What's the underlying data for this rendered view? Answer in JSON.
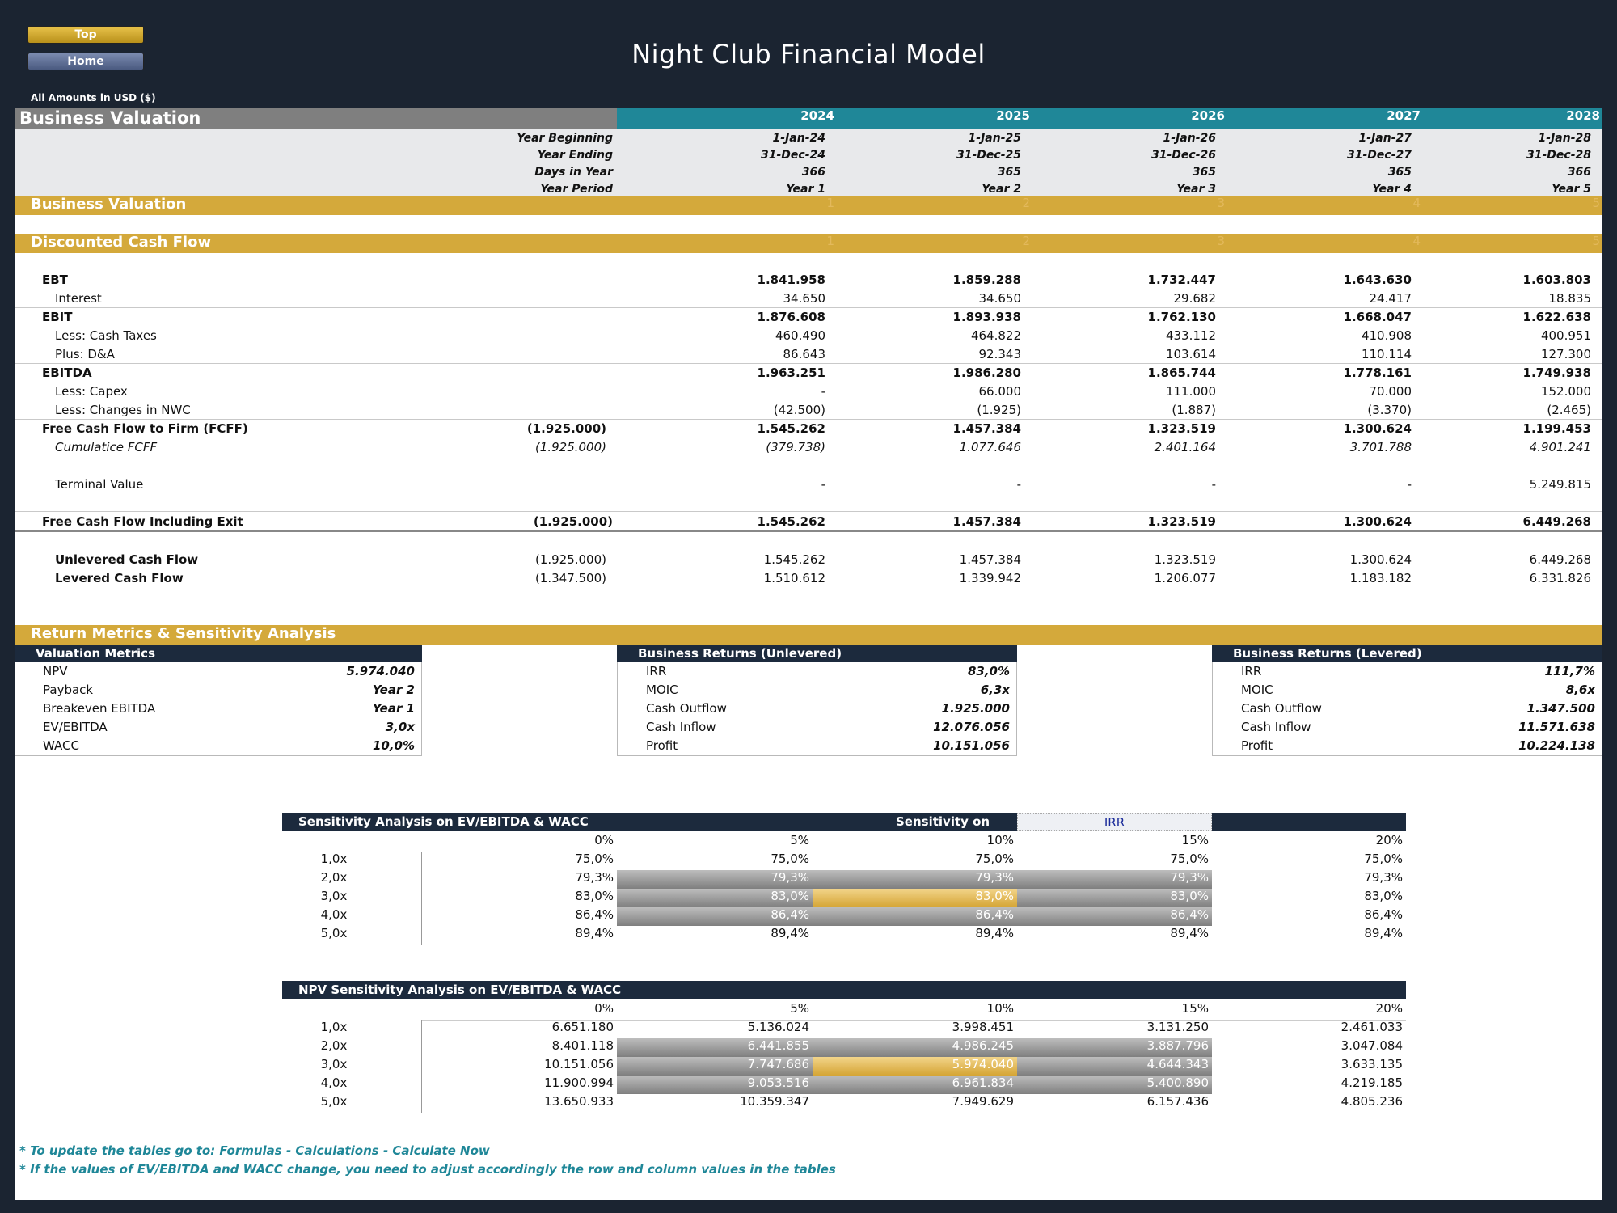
{
  "nav": {
    "top_label": "Top",
    "home_label": "Home"
  },
  "title": "Night Club Financial Model",
  "amounts_note": "All Amounts in  USD ($)",
  "header": {
    "section_title": "Business Valuation",
    "years": [
      "2024",
      "2025",
      "2026",
      "2027",
      "2028"
    ],
    "year_beginning_label": "Year Beginning",
    "year_ending_label": "Year Ending",
    "days_label": "Days in Year",
    "period_label": "Year Period",
    "year_beginning": [
      "1-Jan-24",
      "1-Jan-25",
      "1-Jan-26",
      "1-Jan-27",
      "1-Jan-28"
    ],
    "year_ending": [
      "31-Dec-24",
      "31-Dec-25",
      "31-Dec-26",
      "31-Dec-27",
      "31-Dec-28"
    ],
    "days": [
      "366",
      "365",
      "365",
      "365",
      "366"
    ],
    "period": [
      "Year 1",
      "Year 2",
      "Year 3",
      "Year 4",
      "Year 5"
    ]
  },
  "bands": {
    "business_valuation": {
      "label": "Business Valuation",
      "nums": [
        "1",
        "2",
        "3",
        "4",
        "5"
      ]
    },
    "dcf": {
      "label": "Discounted Cash Flow",
      "nums": [
        "1",
        "2",
        "3",
        "4",
        "5"
      ]
    },
    "returns": {
      "label": "Return Metrics & Sensitivity Analysis"
    }
  },
  "dcf_rows": [
    {
      "label": "EBT",
      "initial": "",
      "values": [
        "1.841.958",
        "1.859.288",
        "1.732.447",
        "1.643.630",
        "1.603.803"
      ]
    },
    {
      "label": "Interest",
      "initial": "",
      "values": [
        "34.650",
        "34.650",
        "29.682",
        "24.417",
        "18.835"
      ]
    },
    {
      "label": "EBIT",
      "initial": "",
      "values": [
        "1.876.608",
        "1.893.938",
        "1.762.130",
        "1.668.047",
        "1.622.638"
      ]
    },
    {
      "label": "Less: Cash Taxes",
      "initial": "",
      "values": [
        "460.490",
        "464.822",
        "433.112",
        "410.908",
        "400.951"
      ]
    },
    {
      "label": "Plus: D&A",
      "initial": "",
      "values": [
        "86.643",
        "92.343",
        "103.614",
        "110.114",
        "127.300"
      ]
    },
    {
      "label": "EBITDA",
      "initial": "",
      "values": [
        "1.963.251",
        "1.986.280",
        "1.865.744",
        "1.778.161",
        "1.749.938"
      ]
    },
    {
      "label": "Less: Capex",
      "initial": "",
      "values": [
        "-",
        "66.000",
        "111.000",
        "70.000",
        "152.000"
      ]
    },
    {
      "label": "Less: Changes in NWC",
      "initial": "",
      "values": [
        "(42.500)",
        "(1.925)",
        "(1.887)",
        "(3.370)",
        "(2.465)"
      ]
    },
    {
      "label": "Free Cash Flow to Firm (FCFF)",
      "initial": "(1.925.000)",
      "values": [
        "1.545.262",
        "1.457.384",
        "1.323.519",
        "1.300.624",
        "1.199.453"
      ]
    },
    {
      "label": "Cumulatice FCFF",
      "initial": "(1.925.000)",
      "values": [
        "(379.738)",
        "1.077.646",
        "2.401.164",
        "3.701.788",
        "4.901.241"
      ]
    },
    {
      "label": "Terminal Value",
      "initial": "",
      "values": [
        "-",
        "-",
        "-",
        "-",
        "5.249.815"
      ]
    },
    {
      "label": "Free Cash Flow Including Exit",
      "initial": "(1.925.000)",
      "values": [
        "1.545.262",
        "1.457.384",
        "1.323.519",
        "1.300.624",
        "6.449.268"
      ]
    },
    {
      "label": "Unlevered Cash Flow",
      "initial": "(1.925.000)",
      "values": [
        "1.545.262",
        "1.457.384",
        "1.323.519",
        "1.300.624",
        "6.449.268"
      ]
    },
    {
      "label": "Levered Cash Flow",
      "initial": "(1.347.500)",
      "values": [
        "1.510.612",
        "1.339.942",
        "1.206.077",
        "1.183.182",
        "6.331.826"
      ]
    }
  ],
  "panels": {
    "valuation": {
      "title": "Valuation Metrics",
      "rows": [
        {
          "label": "NPV",
          "value": "5.974.040"
        },
        {
          "label": "Payback",
          "value": "Year 2"
        },
        {
          "label": "Breakeven EBITDA",
          "value": "Year 1"
        },
        {
          "label": "EV/EBITDA",
          "value": "3,0x"
        },
        {
          "label": "WACC",
          "value": "10,0%"
        }
      ]
    },
    "unlevered": {
      "title": "Business Returns (Unlevered)",
      "rows": [
        {
          "label": "IRR",
          "value": "83,0%"
        },
        {
          "label": "MOIC",
          "value": "6,3x"
        },
        {
          "label": "Cash Outflow",
          "value": "1.925.000"
        },
        {
          "label": "Cash Inflow",
          "value": "12.076.056"
        },
        {
          "label": "Profit",
          "value": "10.151.056"
        }
      ]
    },
    "levered": {
      "title": "Business Returns (Levered)",
      "rows": [
        {
          "label": "IRR",
          "value": "111,7%"
        },
        {
          "label": "MOIC",
          "value": "8,6x"
        },
        {
          "label": "Cash Outflow",
          "value": "1.347.500"
        },
        {
          "label": "Cash Inflow",
          "value": "11.571.638"
        },
        {
          "label": "Profit",
          "value": "10.224.138"
        }
      ]
    }
  },
  "sensitivity_irr": {
    "title": "Sensitivity Analysis on EV/EBITDA & WACC",
    "sensitivity_on_label": "Sensitivity on",
    "sensitivity_on_value": "IRR",
    "cols": [
      "0%",
      "5%",
      "10%",
      "15%",
      "20%"
    ],
    "rows": [
      "1,0x",
      "2,0x",
      "3,0x",
      "4,0x",
      "5,0x"
    ],
    "values": [
      [
        "75,0%",
        "75,0%",
        "75,0%",
        "75,0%",
        "75,0%"
      ],
      [
        "79,3%",
        "79,3%",
        "79,3%",
        "79,3%",
        "79,3%"
      ],
      [
        "83,0%",
        "83,0%",
        "83,0%",
        "83,0%",
        "83,0%"
      ],
      [
        "86,4%",
        "86,4%",
        "86,4%",
        "86,4%",
        "86,4%"
      ],
      [
        "89,4%",
        "89,4%",
        "89,4%",
        "89,4%",
        "89,4%"
      ]
    ]
  },
  "sensitivity_npv": {
    "title": "NPV Sensitivity Analysis on EV/EBITDA & WACC",
    "cols": [
      "0%",
      "5%",
      "10%",
      "15%",
      "20%"
    ],
    "rows": [
      "1,0x",
      "2,0x",
      "3,0x",
      "4,0x",
      "5,0x"
    ],
    "values": [
      [
        "6.651.180",
        "5.136.024",
        "3.998.451",
        "3.131.250",
        "2.461.033"
      ],
      [
        "8.401.118",
        "6.441.855",
        "4.986.245",
        "3.887.796",
        "3.047.084"
      ],
      [
        "10.151.056",
        "7.747.686",
        "5.974.040",
        "4.644.343",
        "3.633.135"
      ],
      [
        "11.900.994",
        "9.053.516",
        "6.961.834",
        "5.400.890",
        "4.219.185"
      ],
      [
        "13.650.933",
        "10.359.347",
        "7.949.629",
        "6.157.436",
        "4.805.236"
      ]
    ]
  },
  "footnotes": [
    "* To update the tables go to: Formulas - Calculations - Calculate Now",
    "* If the values of EV/EBITDA and WACC change, you need to adjust accordingly the row and column values in the tables"
  ],
  "colors": {
    "navy": "#1c2a3d",
    "teal": "#1f8798",
    "gold": "#d4a93b",
    "background": "#1b2431"
  }
}
